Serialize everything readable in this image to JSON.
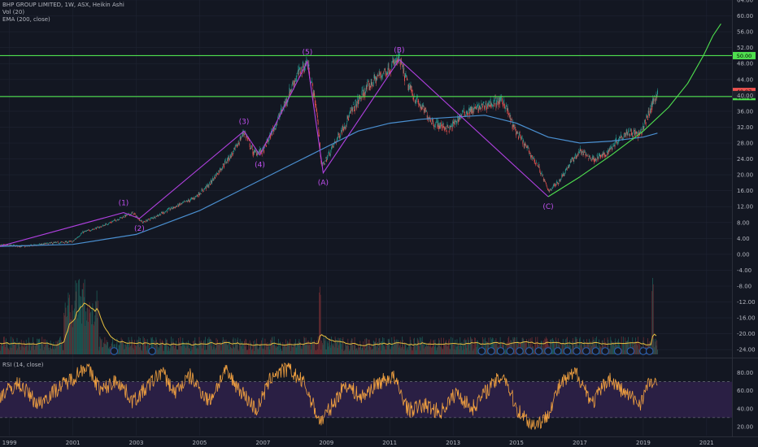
{
  "legend": {
    "title": "BHP GROUP LIMITED, 1W, ASX, Heikin Ashi",
    "vol": "Vol (20)",
    "ema": "EMA (200, close)",
    "rsi": "RSI (14, close)"
  },
  "colors": {
    "background": "#131722",
    "grid": "#1f2433",
    "candle_up": "#26a69a",
    "candle_down": "#ef5350",
    "ema": "#4a8fd0",
    "wave": "#b040e0",
    "green_line": "#4fe04f",
    "vol_ma": "#e8c040",
    "rsi_line": "#f0a040",
    "rsi_band": "#2a1f44",
    "dividend": "#2a62b8"
  },
  "chart_data": [
    {
      "type": "candlestick",
      "title": "BHP GROUP LIMITED, 1W, ASX, Heikin Ashi",
      "x_ticks": [
        "1999",
        "2001",
        "2003",
        "2005",
        "2007",
        "2009",
        "2011",
        "2013",
        "2015",
        "2017",
        "2019",
        "2021"
      ],
      "y_ticks": [
        "64.00",
        "60.00",
        "56.00",
        "52.00",
        "48.00",
        "44.00",
        "40.00",
        "36.00",
        "32.00",
        "28.00",
        "24.00",
        "20.00",
        "16.00",
        "12.00",
        "8.00",
        "4.00",
        "0.00",
        "-4.00",
        "-8.00",
        "-12.00",
        "-16.00",
        "-20.00",
        "-24.00"
      ],
      "ylim": [
        -26,
        64
      ],
      "xlim": [
        1998.7,
        2021.8
      ],
      "price_path": [
        [
          1998.7,
          2.3
        ],
        [
          1999.5,
          2.0
        ],
        [
          2000.3,
          2.8
        ],
        [
          2001.0,
          3.2
        ],
        [
          2001.3,
          5.5
        ],
        [
          2001.9,
          7.0
        ],
        [
          2002.6,
          9.5
        ],
        [
          2002.9,
          10.4
        ],
        [
          2003.2,
          8.0
        ],
        [
          2003.6,
          9.5
        ],
        [
          2004.1,
          11.5
        ],
        [
          2004.8,
          14.0
        ],
        [
          2005.3,
          17.5
        ],
        [
          2005.7,
          22.0
        ],
        [
          2006.1,
          26.0
        ],
        [
          2006.4,
          31.0
        ],
        [
          2006.7,
          25.5
        ],
        [
          2007.0,
          26.0
        ],
        [
          2007.3,
          31.0
        ],
        [
          2007.7,
          38.0
        ],
        [
          2008.0,
          44.0
        ],
        [
          2008.4,
          48.5
        ],
        [
          2008.7,
          36.0
        ],
        [
          2008.85,
          22.0
        ],
        [
          2009.0,
          24.0
        ],
        [
          2009.4,
          30.0
        ],
        [
          2009.8,
          36.0
        ],
        [
          2010.2,
          41.0
        ],
        [
          2010.6,
          44.5
        ],
        [
          2011.0,
          47.0
        ],
        [
          2011.3,
          49.0
        ],
        [
          2011.6,
          42.0
        ],
        [
          2011.9,
          38.0
        ],
        [
          2012.4,
          33.0
        ],
        [
          2012.9,
          31.5
        ],
        [
          2013.3,
          35.5
        ],
        [
          2013.7,
          36.5
        ],
        [
          2014.2,
          38.0
        ],
        [
          2014.6,
          38.5
        ],
        [
          2014.9,
          32.0
        ],
        [
          2015.3,
          27.0
        ],
        [
          2015.7,
          22.0
        ],
        [
          2016.0,
          16.0
        ],
        [
          2016.3,
          18.0
        ],
        [
          2016.7,
          23.0
        ],
        [
          2017.0,
          26.0
        ],
        [
          2017.4,
          24.0
        ],
        [
          2017.8,
          25.0
        ],
        [
          2018.2,
          29.0
        ],
        [
          2018.5,
          31.0
        ],
        [
          2018.9,
          30.0
        ],
        [
          2019.2,
          36.0
        ],
        [
          2019.45,
          41.0
        ]
      ],
      "series": [
        {
          "name": "EMA (200, close)",
          "points": [
            [
              1998.7,
              2.0
            ],
            [
              2001.0,
              2.5
            ],
            [
              2003.0,
              5.0
            ],
            [
              2005.0,
              11.0
            ],
            [
              2006.0,
              15.0
            ],
            [
              2007.0,
              19.0
            ],
            [
              2008.0,
              23.0
            ],
            [
              2009.0,
              27.0
            ],
            [
              2010.0,
              31.0
            ],
            [
              2011.0,
              33.0
            ],
            [
              2012.0,
              34.0
            ],
            [
              2013.0,
              34.5
            ],
            [
              2014.0,
              35.0
            ],
            [
              2015.0,
              33.0
            ],
            [
              2016.0,
              29.5
            ],
            [
              2017.0,
              28.0
            ],
            [
              2018.0,
              28.5
            ],
            [
              2019.0,
              29.5
            ],
            [
              2019.45,
              30.5
            ]
          ]
        }
      ],
      "wave_path": [
        [
          1998.7,
          2.0
        ],
        [
          2002.6,
          10.5
        ],
        [
          2003.1,
          9.0
        ],
        [
          2006.4,
          31.0
        ],
        [
          2006.9,
          25.0
        ],
        [
          2008.4,
          48.5
        ],
        [
          2008.9,
          20.5
        ],
        [
          2011.3,
          49.0
        ],
        [
          2016.0,
          14.5
        ]
      ],
      "wave_labels": [
        {
          "text": "(1)",
          "x": 2002.6,
          "y": 11.5,
          "pos": "above"
        },
        {
          "text": "(2)",
          "x": 2003.1,
          "y": 8.0,
          "pos": "below"
        },
        {
          "text": "(3)",
          "x": 2006.4,
          "y": 32.0,
          "pos": "above"
        },
        {
          "text": "(4)",
          "x": 2006.9,
          "y": 24.0,
          "pos": "below"
        },
        {
          "text": "(5)",
          "x": 2008.4,
          "y": 49.5,
          "pos": "above"
        },
        {
          "text": "(A)",
          "x": 2008.9,
          "y": 19.5,
          "pos": "below"
        },
        {
          "text": "(B)",
          "x": 2011.3,
          "y": 50.0,
          "pos": "above"
        },
        {
          "text": "(C)",
          "x": 2016.0,
          "y": 13.5,
          "pos": "below"
        }
      ],
      "horizontal_lines": [
        {
          "y": 50.0,
          "label": "50.00"
        },
        {
          "y": 39.7,
          "label": "39.71"
        }
      ],
      "trend_curve": [
        [
          2016.0,
          14.5
        ],
        [
          2017.0,
          19.5
        ],
        [
          2018.0,
          25.0
        ],
        [
          2019.0,
          31.0
        ],
        [
          2019.8,
          37.0
        ],
        [
          2020.4,
          43.0
        ],
        [
          2020.9,
          50.0
        ],
        [
          2021.2,
          55.0
        ],
        [
          2021.45,
          58.0
        ]
      ],
      "price_tags": [
        {
          "label": "40.97",
          "y": 40.97,
          "color": "#ef5350"
        },
        {
          "label": "40.78",
          "y": 40.2,
          "color": "#1e222d"
        }
      ],
      "volume_spikes": [
        2001.1,
        2001.2,
        2001.35,
        2008.8,
        2019.3
      ]
    },
    {
      "type": "line",
      "title": "RSI (14, close)",
      "y_ticks": [
        "80.00",
        "60.00",
        "40.00",
        "20.00"
      ],
      "ylim": [
        10,
        95
      ],
      "band": [
        30,
        70
      ],
      "anchors": [
        [
          1998.7,
          55
        ],
        [
          1999.3,
          68
        ],
        [
          1999.9,
          45
        ],
        [
          2000.5,
          62
        ],
        [
          2001.0,
          74
        ],
        [
          2001.4,
          88
        ],
        [
          2001.9,
          60
        ],
        [
          2002.4,
          72
        ],
        [
          2002.9,
          48
        ],
        [
          2003.3,
          62
        ],
        [
          2003.8,
          82
        ],
        [
          2004.2,
          58
        ],
        [
          2004.7,
          76
        ],
        [
          2005.3,
          48
        ],
        [
          2005.8,
          82
        ],
        [
          2006.3,
          60
        ],
        [
          2006.8,
          38
        ],
        [
          2007.3,
          78
        ],
        [
          2007.8,
          84
        ],
        [
          2008.3,
          68
        ],
        [
          2008.8,
          25
        ],
        [
          2009.2,
          44
        ],
        [
          2009.6,
          68
        ],
        [
          2010.1,
          52
        ],
        [
          2010.6,
          68
        ],
        [
          2011.1,
          76
        ],
        [
          2011.6,
          38
        ],
        [
          2012.1,
          44
        ],
        [
          2012.6,
          36
        ],
        [
          2013.1,
          58
        ],
        [
          2013.6,
          40
        ],
        [
          2014.1,
          62
        ],
        [
          2014.6,
          78
        ],
        [
          2015.0,
          40
        ],
        [
          2015.5,
          22
        ],
        [
          2015.9,
          28
        ],
        [
          2016.4,
          68
        ],
        [
          2016.9,
          80
        ],
        [
          2017.4,
          46
        ],
        [
          2017.9,
          74
        ],
        [
          2018.4,
          58
        ],
        [
          2018.9,
          46
        ],
        [
          2019.2,
          70
        ],
        [
          2019.45,
          64
        ]
      ]
    }
  ]
}
